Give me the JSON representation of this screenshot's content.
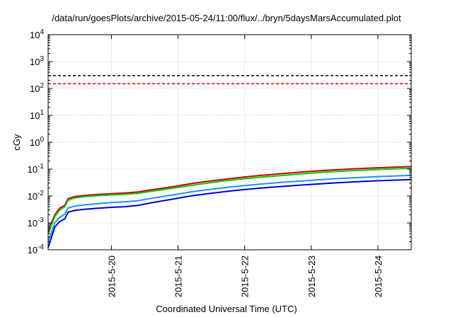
{
  "chart_data": {
    "type": "line",
    "title": "/data/run/goesPlots/archive/2015-05-24/11:00/flux/../bryn/5daysMarsAccumulated.plot",
    "xlabel": "Coordinated Universal Time (UTC)",
    "ylabel": "cGy",
    "yscale": "log",
    "ylim": [
      0.0001,
      10000
    ],
    "xlim": [
      19.05,
      24.5
    ],
    "grid": true,
    "y_ticks": [
      {
        "value": 0.0001,
        "base": "10",
        "exp": "-4"
      },
      {
        "value": 0.001,
        "base": "10",
        "exp": "-3"
      },
      {
        "value": 0.01,
        "base": "10",
        "exp": "-2"
      },
      {
        "value": 0.1,
        "base": "10",
        "exp": "-1"
      },
      {
        "value": 1,
        "base": "10",
        "exp": "0"
      },
      {
        "value": 10,
        "base": "10",
        "exp": "1"
      },
      {
        "value": 100,
        "base": "10",
        "exp": "2"
      },
      {
        "value": 1000,
        "base": "10",
        "exp": "3"
      },
      {
        "value": 10000,
        "base": "10",
        "exp": "4"
      }
    ],
    "x_ticks": [
      {
        "value": 20,
        "label": "2015-5-20"
      },
      {
        "value": 21,
        "label": "2015-5-21"
      },
      {
        "value": 22,
        "label": "2015-5-22"
      },
      {
        "value": 23,
        "label": "2015-5-23"
      },
      {
        "value": 24,
        "label": "2015-5-24"
      }
    ],
    "thresholds": [
      {
        "value": 300,
        "color": "#000000"
      },
      {
        "value": 150,
        "color": "#ff0000"
      }
    ],
    "series": [
      {
        "color": "#cc0000",
        "x": [
          19.05,
          19.15,
          19.22,
          19.3,
          19.35,
          19.45,
          19.6,
          19.8,
          20.0,
          20.2,
          20.4,
          20.6,
          20.8,
          21.0,
          21.2,
          21.4,
          21.6,
          21.8,
          22.0,
          22.2,
          22.4,
          22.6,
          22.8,
          23.0,
          23.2,
          23.4,
          23.6,
          23.8,
          24.0,
          24.2,
          24.5
        ],
        "y": [
          0.0005,
          0.002,
          0.0035,
          0.0045,
          0.008,
          0.0095,
          0.0105,
          0.0115,
          0.0122,
          0.013,
          0.0142,
          0.017,
          0.02,
          0.024,
          0.029,
          0.034,
          0.039,
          0.045,
          0.051,
          0.057,
          0.063,
          0.069,
          0.076,
          0.083,
          0.089,
          0.095,
          0.101,
          0.107,
          0.112,
          0.117,
          0.124
        ]
      },
      {
        "color": "#00cc00",
        "x": [
          19.05,
          19.15,
          19.22,
          19.3,
          19.35,
          19.45,
          19.6,
          19.8,
          20.0,
          20.2,
          20.4,
          20.6,
          20.8,
          21.0,
          21.2,
          21.4,
          21.6,
          21.8,
          22.0,
          22.2,
          22.4,
          22.6,
          22.8,
          23.0,
          23.2,
          23.4,
          23.6,
          23.8,
          24.0,
          24.2,
          24.5
        ],
        "y": [
          0.0004,
          0.0017,
          0.003,
          0.004,
          0.007,
          0.0085,
          0.0095,
          0.0103,
          0.011,
          0.0116,
          0.0126,
          0.015,
          0.0177,
          0.021,
          0.025,
          0.029,
          0.034,
          0.039,
          0.044,
          0.049,
          0.054,
          0.059,
          0.065,
          0.071,
          0.077,
          0.082,
          0.087,
          0.092,
          0.097,
          0.102,
          0.108
        ]
      },
      {
        "color": "#1e90ff",
        "x": [
          19.05,
          19.15,
          19.22,
          19.3,
          19.35,
          19.45,
          19.6,
          19.8,
          20.0,
          20.2,
          20.4,
          20.6,
          20.8,
          21.0,
          21.2,
          21.4,
          21.6,
          21.8,
          22.0,
          22.2,
          22.4,
          22.6,
          22.8,
          23.0,
          23.2,
          23.4,
          23.6,
          23.8,
          24.0,
          24.2,
          24.5
        ],
        "y": [
          0.0002,
          0.001,
          0.0016,
          0.0021,
          0.0036,
          0.0042,
          0.0047,
          0.0052,
          0.0057,
          0.0061,
          0.0067,
          0.0082,
          0.0098,
          0.0118,
          0.0143,
          0.0166,
          0.019,
          0.0218,
          0.0245,
          0.0272,
          0.0299,
          0.0327,
          0.0355,
          0.0385,
          0.0415,
          0.0443,
          0.0471,
          0.0498,
          0.0525,
          0.055,
          0.0585
        ]
      },
      {
        "color": "#0000cc",
        "x": [
          19.05,
          19.15,
          19.22,
          19.3,
          19.35,
          19.45,
          19.6,
          19.8,
          20.0,
          20.2,
          20.4,
          20.6,
          20.8,
          21.0,
          21.2,
          21.4,
          21.6,
          21.8,
          22.0,
          22.2,
          22.4,
          22.6,
          22.8,
          23.0,
          23.2,
          23.4,
          23.6,
          23.8,
          24.0,
          24.2,
          24.5
        ],
        "y": [
          0.00012,
          0.0007,
          0.0011,
          0.0014,
          0.0025,
          0.0029,
          0.0032,
          0.0035,
          0.0038,
          0.004,
          0.0045,
          0.0056,
          0.0068,
          0.0083,
          0.0102,
          0.0118,
          0.0135,
          0.0155,
          0.0174,
          0.0193,
          0.0212,
          0.023,
          0.025,
          0.027,
          0.029,
          0.031,
          0.033,
          0.035,
          0.0368,
          0.0385,
          0.041
        ]
      }
    ]
  }
}
